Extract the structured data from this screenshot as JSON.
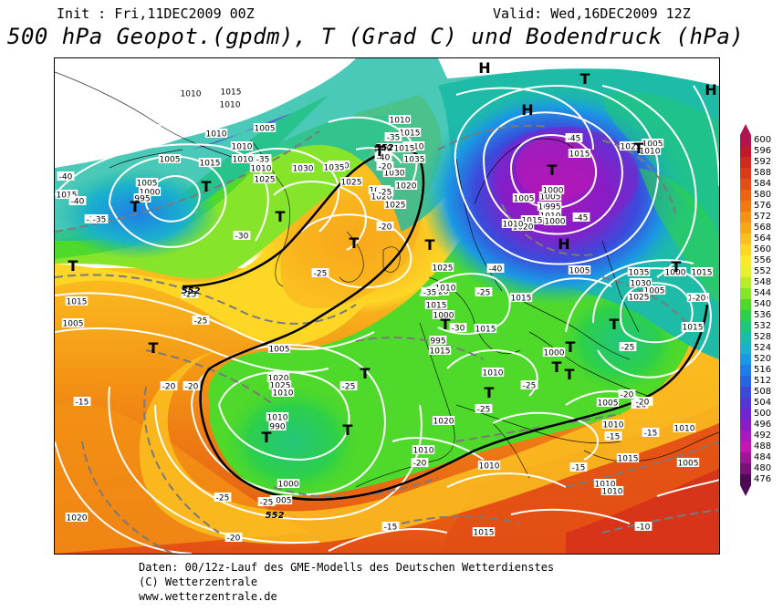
{
  "header": {
    "init": "Init : Fri,11DEC2009 00Z",
    "valid": "Valid: Wed,16DEC2009 12Z",
    "title": "500 hPa Geopot.(gpdm), T (Grad C) und Bodendruck (hPa)"
  },
  "legend": {
    "labels": [
      "600",
      "596",
      "592",
      "588",
      "584",
      "580",
      "576",
      "572",
      "568",
      "564",
      "560",
      "556",
      "552",
      "548",
      "544",
      "540",
      "536",
      "532",
      "528",
      "524",
      "520",
      "516",
      "512",
      "508",
      "504",
      "500",
      "496",
      "492",
      "488",
      "484",
      "480",
      "476"
    ],
    "colors": [
      "#b0134d",
      "#c2182d",
      "#d12a1c",
      "#dc3a17",
      "#e34e14",
      "#ea6412",
      "#ef7a12",
      "#f39214",
      "#f7a81a",
      "#fbbf20",
      "#fdd626",
      "#fbe92e",
      "#e6f030",
      "#b9ec2c",
      "#86e42a",
      "#4fd92a",
      "#2dd04a",
      "#22c67a",
      "#1ebba6",
      "#1ab0ce",
      "#1a98e3",
      "#1f7ee6",
      "#2864e2",
      "#3a4bdc",
      "#5436d6",
      "#6e25cf",
      "#8a1cc6",
      "#a818bd",
      "#c018b1",
      "#a01595",
      "#7a1178",
      "#4e0b55"
    ]
  },
  "map": {
    "highs": [
      {
        "label": "H"
      },
      {
        "label": "H"
      },
      {
        "label": "H"
      },
      {
        "label": "H"
      }
    ],
    "lows": [
      {
        "label": "T"
      },
      {
        "label": "T"
      },
      {
        "label": "T"
      },
      {
        "label": "T"
      },
      {
        "label": "T"
      },
      {
        "label": "T"
      },
      {
        "label": "T"
      },
      {
        "label": "T"
      },
      {
        "label": "T"
      },
      {
        "label": "T"
      },
      {
        "label": "T"
      },
      {
        "label": "T"
      },
      {
        "label": "T"
      },
      {
        "label": "T"
      },
      {
        "label": "T"
      },
      {
        "label": "T"
      },
      {
        "label": "T"
      },
      {
        "label": "T"
      },
      {
        "label": "T"
      },
      {
        "label": "T"
      },
      {
        "label": "T"
      }
    ],
    "pressure_labels": [
      "1010",
      "1015",
      "1010",
      "1005",
      "1010",
      "1015",
      "1005",
      "1000",
      "995",
      "1015",
      "1010",
      "1005",
      "1010",
      "1010",
      "1030",
      "1025",
      "1030",
      "1035",
      "1020",
      "1025",
      "1035",
      "1020",
      "1010",
      "1030",
      "1025",
      "1020",
      "1015",
      "1010",
      "1015",
      "1005",
      "1015",
      "1010",
      "1005",
      "1000",
      "995",
      "990",
      "1000",
      "1005",
      "1010",
      "1020",
      "1015",
      "1005",
      "1020",
      "1025",
      "1005",
      "1010",
      "1015",
      "1015",
      "1000",
      "1005",
      "1015",
      "1010",
      "1010",
      "1025",
      "1030",
      "1035",
      "1025",
      "1005",
      "1010",
      "1015",
      "1015",
      "1020",
      "1010",
      "1015",
      "1005",
      "1000",
      "995",
      "1010",
      "1020",
      "1015",
      "1020",
      "1025",
      "1010",
      "1010",
      "1000",
      "1000",
      "1005",
      "1010",
      "1015",
      "1015",
      "1010",
      "1005",
      "1010",
      "1010",
      "1010",
      "1015"
    ],
    "temperature_labels": [
      "-40",
      "-35",
      "-35",
      "-40",
      "-30",
      "-35",
      "-20",
      "-25",
      "-25",
      "-20",
      "-25",
      "-25",
      "-20",
      "-25",
      "-20",
      "-15",
      "-20",
      "-25",
      "-25",
      "-30",
      "-35",
      "-40",
      "-35",
      "-40",
      "-45",
      "-45",
      "-40",
      "-25",
      "-25",
      "-20",
      "-20",
      "-25",
      "-20",
      "-15",
      "-15",
      "-15",
      "-20",
      "-15",
      "-10",
      "-20",
      "-25",
      "-20"
    ],
    "contour_labels": [
      "552",
      "552",
      "552"
    ]
  },
  "footer": {
    "line1": "Daten: 00/12z-Lauf des GME-Modells des Deutschen Wetterdienstes",
    "line2": "(C) Wetterzentrale",
    "line3": "www.wetterzentrale.de"
  }
}
